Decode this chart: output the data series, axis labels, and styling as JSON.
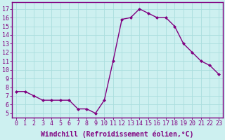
{
  "x": [
    0,
    1,
    2,
    3,
    4,
    5,
    6,
    7,
    8,
    9,
    10,
    11,
    12,
    13,
    14,
    15,
    16,
    17,
    18,
    19,
    20,
    21,
    22,
    23
  ],
  "y": [
    7.5,
    7.5,
    7.0,
    6.5,
    6.5,
    6.5,
    6.5,
    5.5,
    5.5,
    5.0,
    6.5,
    11.0,
    15.8,
    16.0,
    17.0,
    16.5,
    16.0,
    16.0,
    15.0,
    13.0,
    12.0,
    11.0,
    10.5,
    9.5
  ],
  "line_color": "#800080",
  "marker": "D",
  "marker_size": 2.0,
  "bg_color": "#cdf0f0",
  "grid_color": "#aadddd",
  "xlabel": "Windchill (Refroidissement éolien,°C)",
  "ylabel_ticks": [
    5,
    6,
    7,
    8,
    9,
    10,
    11,
    12,
    13,
    14,
    15,
    16,
    17
  ],
  "xlim": [
    -0.5,
    23.5
  ],
  "ylim": [
    4.5,
    17.8
  ],
  "xlabel_fontsize": 7.0,
  "tick_fontsize": 6.0,
  "linewidth": 1.0
}
